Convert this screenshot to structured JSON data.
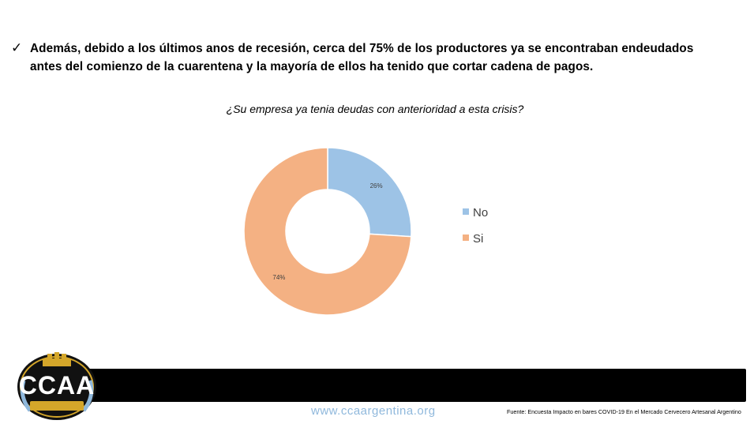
{
  "bullet": {
    "check_icon": "check-mark-icon",
    "text_line1": "Además, debido a los últimos anos de recesión, cerca del 75% de los productores ya se encontraban endeudados",
    "text_line2": "antes del comienzo de la cuarentena y la mayoría de ellos ha tenido que cortar cadena de pagos."
  },
  "chart_data": {
    "type": "pie",
    "donut": true,
    "title": "¿Su empresa ya tenia deudas con anterioridad a esta crisis?",
    "categories": [
      "No",
      "Si"
    ],
    "values": [
      26,
      74
    ],
    "data_labels": [
      "26%",
      "74%"
    ],
    "colors": [
      "#9dc3e6",
      "#f4b183"
    ],
    "legend_position": "right"
  },
  "footer": {
    "logo_text": "CCAA",
    "logo_subtitle": "CAMARA DE CERVECEROS ARTESANALES DE ARGENTINA",
    "website": "www.ccaargentina.org",
    "source": "Fuente: Encuesta Impacto en bares COVID-19 En el Mercado Cervecero Artesanal Argentino"
  }
}
